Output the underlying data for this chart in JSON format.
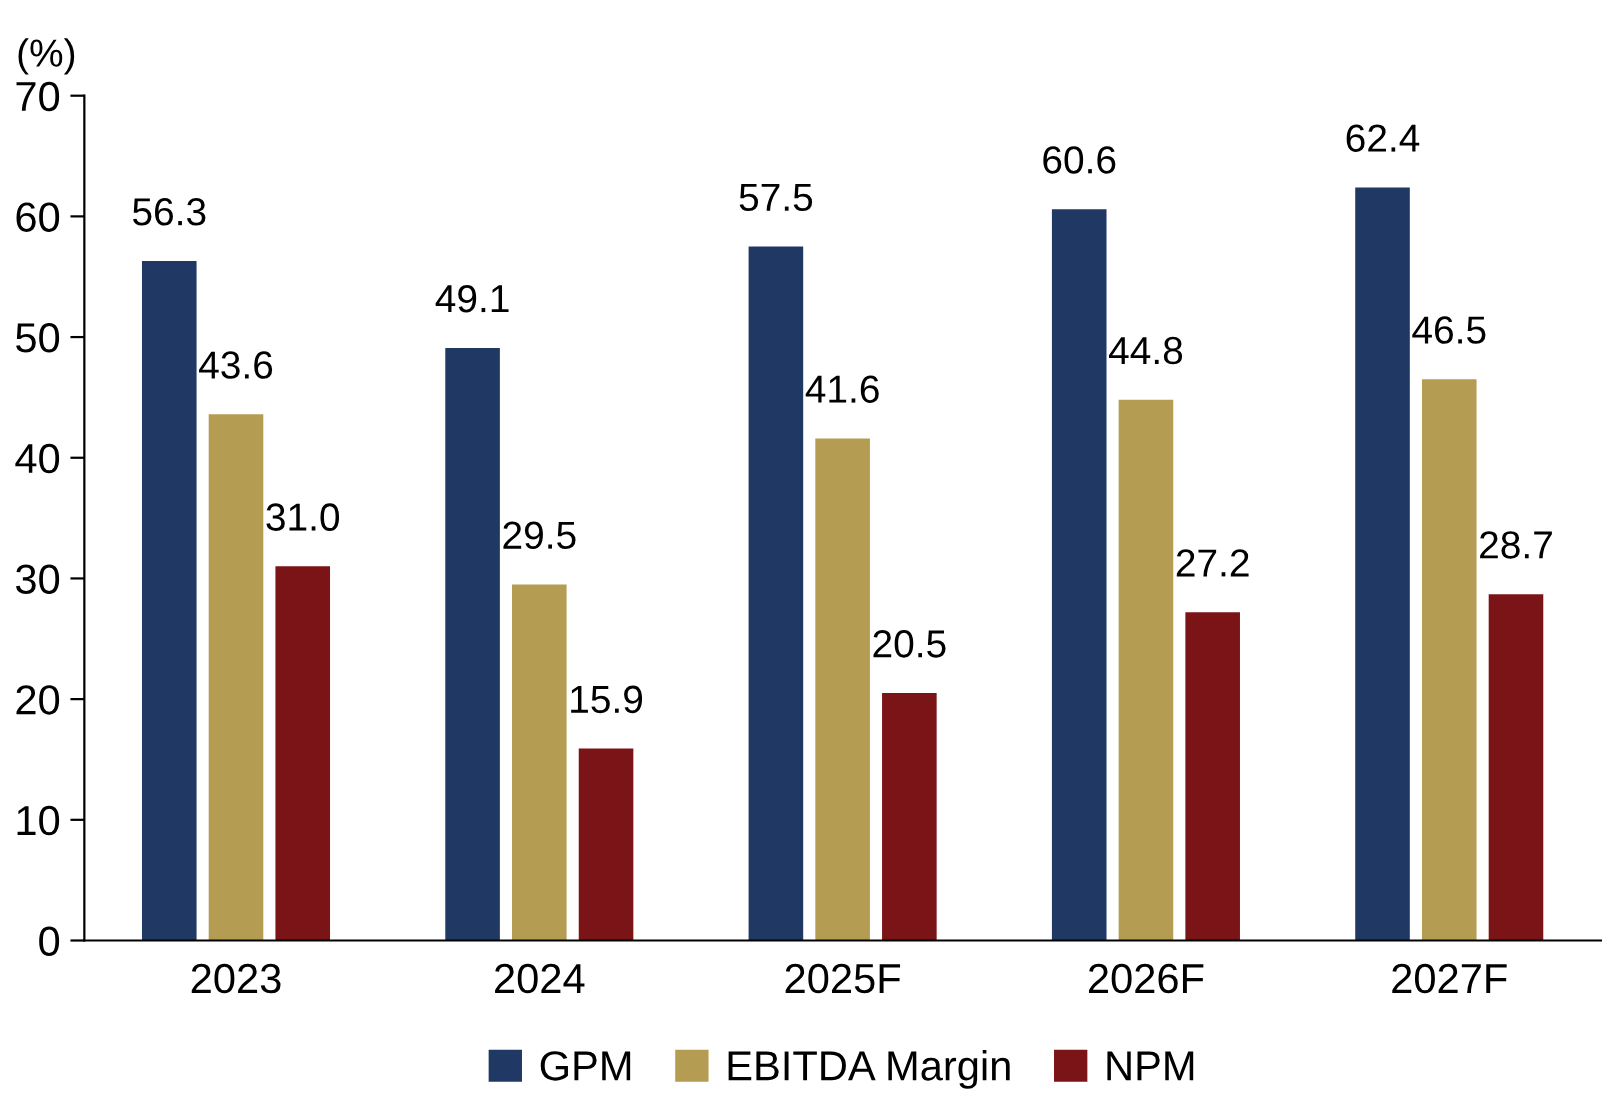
{
  "chart_data": {
    "type": "bar",
    "ylabel": "(%)",
    "categories": [
      "2023",
      "2024",
      "2025F",
      "2026F",
      "2027F"
    ],
    "series": [
      {
        "name": "GPM",
        "color": "#1f3864",
        "values": [
          56.3,
          49.1,
          57.5,
          60.6,
          62.4
        ],
        "value_labels": [
          "56.3",
          "49.1",
          "57.5",
          "60.6",
          "62.4"
        ]
      },
      {
        "name": "EBITDA Margin",
        "color": "#b49c52",
        "values": [
          43.6,
          29.5,
          41.6,
          44.8,
          46.5
        ],
        "value_labels": [
          "43.6",
          "29.5",
          "41.6",
          "44.8",
          "46.5"
        ]
      },
      {
        "name": "NPM",
        "color": "#7b1416",
        "values": [
          31.0,
          15.9,
          20.5,
          27.2,
          28.7
        ],
        "value_labels": [
          "31.0",
          "15.9",
          "20.5",
          "27.2",
          "28.7"
        ]
      }
    ],
    "ylim": [
      0,
      70
    ],
    "yticks": [
      0,
      10,
      20,
      30,
      40,
      50,
      60,
      70
    ],
    "grid": false,
    "legend": "bottom"
  }
}
